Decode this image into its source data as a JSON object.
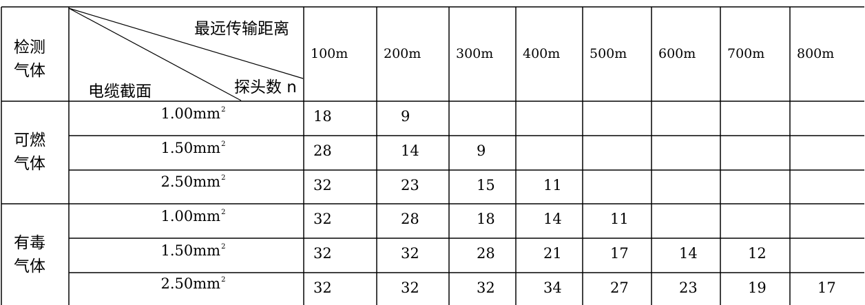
{
  "header": {
    "detect_gas": "检测气体",
    "max_distance": "最远传输距离",
    "probe_count": "探头数 n",
    "cable_section": "电缆截面",
    "distances": [
      "100m",
      "200m",
      "300m",
      "400m",
      "500m",
      "600m",
      "700m",
      "800m"
    ]
  },
  "groups": [
    {
      "gas": "可燃气体",
      "rows": [
        {
          "section": "1.00mm",
          "sup": "2",
          "values": [
            "18",
            "9",
            "",
            "",
            "",
            "",
            "",
            ""
          ]
        },
        {
          "section": "1.50mm",
          "sup": "2",
          "values": [
            "28",
            "14",
            "9",
            "",
            "",
            "",
            "",
            ""
          ]
        },
        {
          "section": "2.50mm",
          "sup": "2",
          "values": [
            "32",
            "23",
            "15",
            "11",
            "",
            "",
            "",
            ""
          ]
        }
      ]
    },
    {
      "gas": "有毒气体",
      "rows": [
        {
          "section": "1.00mm",
          "sup": "2",
          "values": [
            "32",
            "28",
            "18",
            "14",
            "11",
            "",
            "",
            ""
          ]
        },
        {
          "section": "1.50mm",
          "sup": "2",
          "values": [
            "32",
            "32",
            "28",
            "21",
            "17",
            "14",
            "12",
            ""
          ]
        },
        {
          "section": "2.50mm",
          "sup": "2",
          "values": [
            "32",
            "32",
            "32",
            "34",
            "27",
            "23",
            "19",
            "17"
          ]
        }
      ]
    }
  ]
}
